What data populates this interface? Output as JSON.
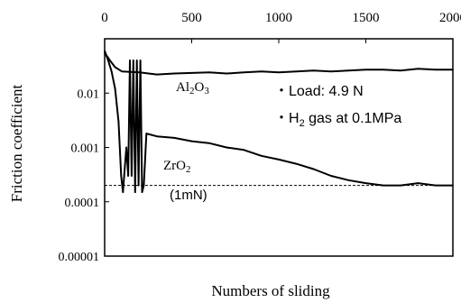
{
  "chart_data": {
    "type": "line",
    "xlabel": "Numbers of sliding",
    "ylabel": "Friction coefficient",
    "xlim": [
      0,
      2000
    ],
    "ylim": [
      1e-05,
      0.1
    ],
    "y_scale": "log",
    "x_ticks": [
      "0",
      "500",
      "1000",
      "1500",
      "2000"
    ],
    "x_tick_values": [
      0,
      500,
      1000,
      1500,
      2000
    ],
    "y_ticks": [
      "0.00001",
      "0.0001",
      "0.001",
      "0.01"
    ],
    "y_tick_values": [
      1e-05,
      0.0001,
      0.001,
      0.01
    ],
    "x_axis_position": "top",
    "grid": false,
    "series": [
      {
        "name": "Al2O3",
        "color": "#000000",
        "points": [
          [
            0,
            0.055
          ],
          [
            30,
            0.04
          ],
          [
            60,
            0.03
          ],
          [
            100,
            0.025
          ],
          [
            200,
            0.024
          ],
          [
            300,
            0.022
          ],
          [
            400,
            0.023
          ],
          [
            500,
            0.0235
          ],
          [
            600,
            0.024
          ],
          [
            700,
            0.023
          ],
          [
            800,
            0.024
          ],
          [
            900,
            0.025
          ],
          [
            1000,
            0.024
          ],
          [
            1100,
            0.025
          ],
          [
            1200,
            0.026
          ],
          [
            1300,
            0.025
          ],
          [
            1400,
            0.026
          ],
          [
            1500,
            0.027
          ],
          [
            1600,
            0.027
          ],
          [
            1700,
            0.026
          ],
          [
            1800,
            0.028
          ],
          [
            1900,
            0.027
          ],
          [
            2000,
            0.027
          ]
        ]
      },
      {
        "name": "ZrO2",
        "color": "#000000",
        "points": [
          [
            0,
            0.06
          ],
          [
            20,
            0.04
          ],
          [
            40,
            0.025
          ],
          [
            60,
            0.012
          ],
          [
            80,
            0.003
          ],
          [
            95,
            0.0003
          ],
          [
            105,
            0.00015
          ],
          [
            115,
            0.0004
          ],
          [
            125,
            0.001
          ],
          [
            135,
            0.0003
          ],
          [
            145,
            0.04
          ],
          [
            155,
            0.0003
          ],
          [
            165,
            0.04
          ],
          [
            175,
            0.00015
          ],
          [
            185,
            0.04
          ],
          [
            195,
            0.0002
          ],
          [
            205,
            0.04
          ],
          [
            215,
            0.00015
          ],
          [
            225,
            0.0002
          ],
          [
            240,
            0.0018
          ],
          [
            300,
            0.0016
          ],
          [
            400,
            0.0015
          ],
          [
            500,
            0.0013
          ],
          [
            600,
            0.0012
          ],
          [
            700,
            0.001
          ],
          [
            800,
            0.0009
          ],
          [
            900,
            0.0007
          ],
          [
            1000,
            0.0006
          ],
          [
            1100,
            0.0005
          ],
          [
            1200,
            0.0004
          ],
          [
            1300,
            0.0003
          ],
          [
            1400,
            0.00025
          ],
          [
            1500,
            0.00022
          ],
          [
            1600,
            0.0002
          ],
          [
            1700,
            0.0002
          ],
          [
            1800,
            0.00022
          ],
          [
            1900,
            0.0002
          ],
          [
            2000,
            0.0002
          ]
        ]
      }
    ],
    "reference_line": {
      "value": 0.0002,
      "style": "dashed",
      "label": "(1mN)"
    },
    "annotations": {
      "al2o3_label": "Al",
      "al2o3_sub1": "2",
      "al2o3_mid": "O",
      "al2o3_sub2": "3",
      "zro2_label": "ZrO",
      "zro2_sub": "2",
      "condition_1": "・Load: 4.9 N",
      "condition_2_prefix": "・H",
      "condition_2_sub": "2",
      "condition_2_suffix": " gas at 0.1MPa"
    }
  }
}
